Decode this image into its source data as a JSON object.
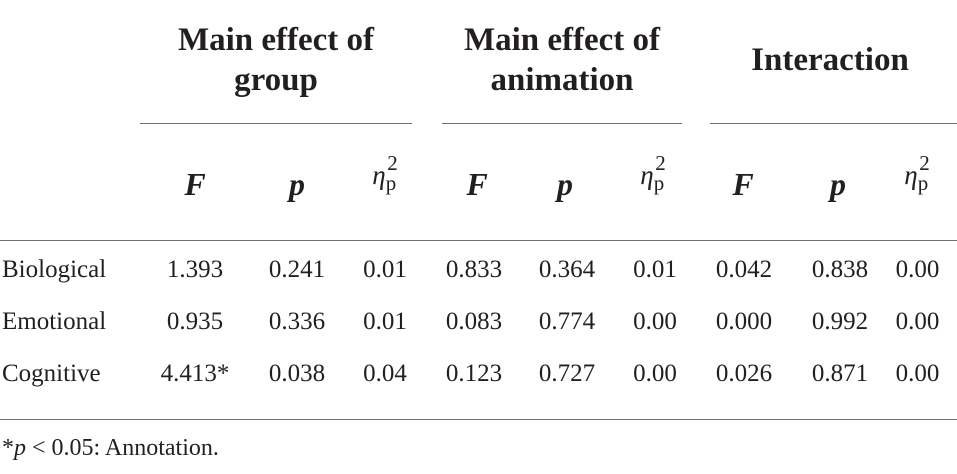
{
  "table": {
    "groups": [
      {
        "title_lines": [
          "Main effect of",
          "group"
        ]
      },
      {
        "title_lines": [
          "Main effect of",
          "animation"
        ]
      },
      {
        "title_lines": [
          "Interaction"
        ]
      }
    ],
    "subheaders": [
      "F",
      "p",
      "η",
      "p",
      "2"
    ],
    "rows": [
      {
        "label": "Biological",
        "values": [
          "1.393",
          "0.241",
          "0.01",
          "0.833",
          "0.364",
          "0.01",
          "0.042",
          "0.838",
          "0.00"
        ]
      },
      {
        "label": "Emotional",
        "values": [
          "0.935",
          "0.336",
          "0.01",
          "0.083",
          "0.774",
          "0.00",
          "0.000",
          "0.992",
          "0.00"
        ]
      },
      {
        "label": "Cognitive",
        "values": [
          "4.413*",
          "0.038",
          "0.04",
          "0.123",
          "0.727",
          "0.00",
          "0.026",
          "0.871",
          "0.00"
        ]
      }
    ],
    "footnote": {
      "star": "*",
      "p": "p",
      "rest": " < 0.05: Annotation."
    }
  }
}
